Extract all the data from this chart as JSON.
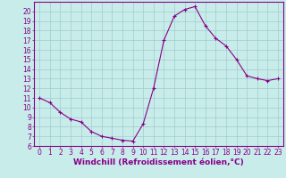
{
  "x": [
    0,
    1,
    2,
    3,
    4,
    5,
    6,
    7,
    8,
    9,
    10,
    11,
    12,
    13,
    14,
    15,
    16,
    17,
    18,
    19,
    20,
    21,
    22,
    23
  ],
  "y": [
    11.0,
    10.5,
    9.5,
    8.8,
    8.5,
    7.5,
    7.0,
    6.8,
    6.6,
    6.5,
    8.3,
    12.0,
    17.0,
    19.5,
    20.2,
    20.5,
    18.5,
    17.2,
    16.4,
    15.0,
    13.3,
    13.0,
    12.8,
    13.0
  ],
  "line_color": "#880088",
  "marker": "+",
  "marker_size": 3,
  "marker_linewidth": 0.8,
  "linewidth": 0.8,
  "bg_color": "#c8ecea",
  "grid_color": "#a0cccc",
  "xlabel": "Windchill (Refroidissement éolien,°C)",
  "xlabel_color": "#880088",
  "xlabel_fontsize": 6.5,
  "xlim": [
    -0.5,
    23.5
  ],
  "ylim": [
    6,
    21
  ],
  "yticks": [
    6,
    7,
    8,
    9,
    10,
    11,
    12,
    13,
    14,
    15,
    16,
    17,
    18,
    19,
    20
  ],
  "xticks": [
    0,
    1,
    2,
    3,
    4,
    5,
    6,
    7,
    8,
    9,
    10,
    11,
    12,
    13,
    14,
    15,
    16,
    17,
    18,
    19,
    20,
    21,
    22,
    23
  ],
  "tick_fontsize": 5.5,
  "tick_color": "#880088",
  "spine_color": "#880088",
  "spine_linewidth": 0.8
}
